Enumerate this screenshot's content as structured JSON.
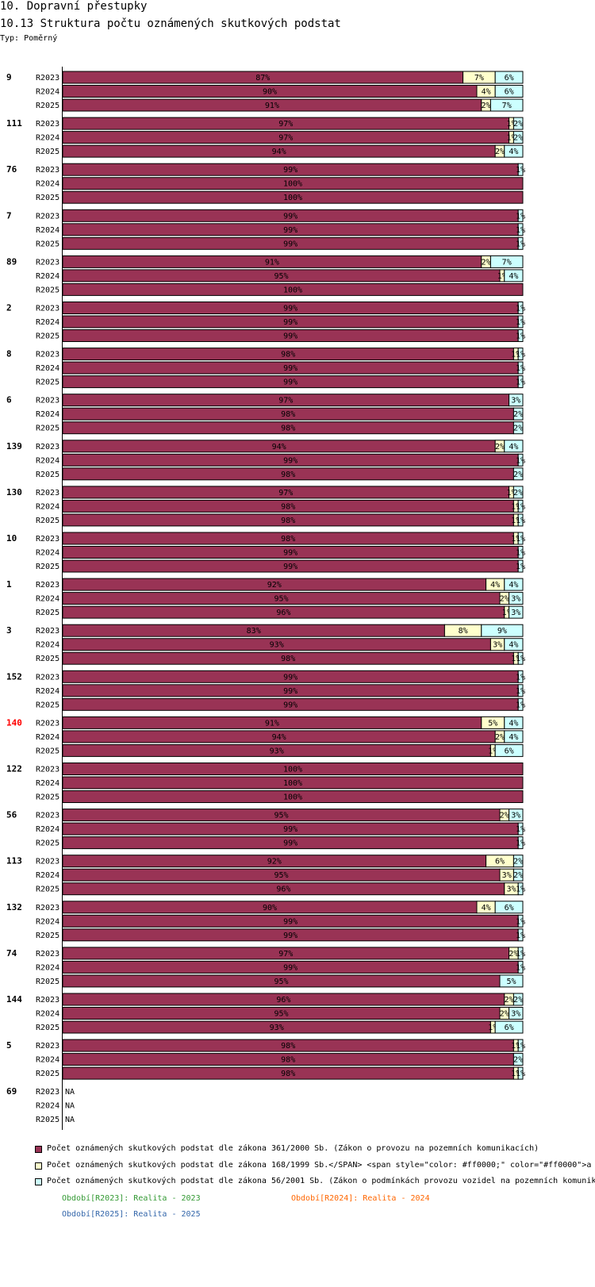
{
  "header": {
    "title": "10. Dopravní přestupky",
    "subtitle": "10.13 Struktura počtu oznámených skutkových podstat",
    "type_label": "Typ: Poměrný"
  },
  "colors": {
    "series1": "#993355",
    "series2": "#ffffcc",
    "series3": "#ccffff",
    "highlight_label": "#ff0000",
    "period_2023": "#339933",
    "period_2024": "#ff6600",
    "period_2025": "#3366aa"
  },
  "legend": [
    {
      "label": "Počet oznámených skutkových podstat dle zákona 361/2000 Sb. (Zákon o provozu na pozemních komunikacích)",
      "color": "#993355"
    },
    {
      "label": "Počet oznámených skutkových podstat dle zákona 168/1999 Sb.</SPAN> <span style=\"color: #ff0000;\" color=\"#ff0000\">a",
      "color": "#ffffcc"
    },
    {
      "label": "Počet oznámených skutkových podstat dle zákona 56/2001 Sb. (Zákon o podmínkách provozu vozidel na pozemních komunik",
      "color": "#ccffff"
    }
  ],
  "periods": [
    {
      "label": "Období[R2023]: Realita - 2023",
      "color": "#339933"
    },
    {
      "label": "Období[R2024]: Realita - 2024",
      "color": "#ff6600"
    },
    {
      "label": "Období[R2025]: Realita - 2025",
      "color": "#3366aa"
    }
  ],
  "chart_data": {
    "type": "bar",
    "orientation": "horizontal",
    "stacked": "percent",
    "series_names": [
      "361/2000 Sb.",
      "168/1999 Sb.",
      "56/2001 Sb."
    ],
    "xlim": [
      0,
      100
    ],
    "groups": [
      {
        "label": "9",
        "highlight": false,
        "rows": [
          {
            "period": "R2023",
            "values": [
              87,
              7,
              6
            ]
          },
          {
            "period": "R2024",
            "values": [
              90,
              4,
              6
            ]
          },
          {
            "period": "R2025",
            "values": [
              91,
              2,
              7
            ]
          }
        ]
      },
      {
        "label": "111",
        "highlight": false,
        "rows": [
          {
            "period": "R2023",
            "values": [
              97,
              1,
              2
            ]
          },
          {
            "period": "R2024",
            "values": [
              97,
              1,
              2
            ]
          },
          {
            "period": "R2025",
            "values": [
              94,
              2,
              4
            ]
          }
        ]
      },
      {
        "label": "76",
        "highlight": false,
        "rows": [
          {
            "period": "R2023",
            "values": [
              99,
              0,
              1
            ]
          },
          {
            "period": "R2024",
            "values": [
              100,
              0,
              0
            ]
          },
          {
            "period": "R2025",
            "values": [
              100,
              0,
              0
            ]
          }
        ]
      },
      {
        "label": "7",
        "highlight": false,
        "rows": [
          {
            "period": "R2023",
            "values": [
              99,
              0,
              1
            ]
          },
          {
            "period": "R2024",
            "values": [
              99,
              0,
              1
            ]
          },
          {
            "period": "R2025",
            "values": [
              99,
              0,
              1
            ]
          }
        ]
      },
      {
        "label": "89",
        "highlight": false,
        "rows": [
          {
            "period": "R2023",
            "values": [
              91,
              2,
              7
            ]
          },
          {
            "period": "R2024",
            "values": [
              95,
              1,
              4
            ]
          },
          {
            "period": "R2025",
            "values": [
              100,
              0,
              0
            ]
          }
        ]
      },
      {
        "label": "2",
        "highlight": false,
        "rows": [
          {
            "period": "R2023",
            "values": [
              99,
              0,
              1
            ]
          },
          {
            "period": "R2024",
            "values": [
              99,
              0,
              1
            ]
          },
          {
            "period": "R2025",
            "values": [
              99,
              0,
              1
            ]
          }
        ]
      },
      {
        "label": "8",
        "highlight": false,
        "rows": [
          {
            "period": "R2023",
            "values": [
              98,
              1,
              1
            ]
          },
          {
            "period": "R2024",
            "values": [
              99,
              0,
              1
            ]
          },
          {
            "period": "R2025",
            "values": [
              99,
              0,
              1
            ]
          }
        ]
      },
      {
        "label": "6",
        "highlight": false,
        "rows": [
          {
            "period": "R2023",
            "values": [
              97,
              0,
              3
            ]
          },
          {
            "period": "R2024",
            "values": [
              98,
              0,
              2
            ]
          },
          {
            "period": "R2025",
            "values": [
              98,
              0,
              2
            ]
          }
        ]
      },
      {
        "label": "139",
        "highlight": false,
        "rows": [
          {
            "period": "R2023",
            "values": [
              94,
              2,
              4
            ]
          },
          {
            "period": "R2024",
            "values": [
              99,
              0,
              1
            ]
          },
          {
            "period": "R2025",
            "values": [
              98,
              0,
              2
            ]
          }
        ]
      },
      {
        "label": "130",
        "highlight": false,
        "rows": [
          {
            "period": "R2023",
            "values": [
              97,
              1,
              2
            ]
          },
          {
            "period": "R2024",
            "values": [
              98,
              1,
              1
            ]
          },
          {
            "period": "R2025",
            "values": [
              98,
              1,
              1
            ]
          }
        ]
      },
      {
        "label": "10",
        "highlight": false,
        "rows": [
          {
            "period": "R2023",
            "values": [
              98,
              1,
              1
            ]
          },
          {
            "period": "R2024",
            "values": [
              99,
              0,
              1
            ]
          },
          {
            "period": "R2025",
            "values": [
              99,
              0,
              1
            ]
          }
        ]
      },
      {
        "label": "1",
        "highlight": false,
        "rows": [
          {
            "period": "R2023",
            "values": [
              92,
              4,
              4
            ]
          },
          {
            "period": "R2024",
            "values": [
              95,
              2,
              3
            ]
          },
          {
            "period": "R2025",
            "values": [
              96,
              1,
              3
            ]
          }
        ]
      },
      {
        "label": "3",
        "highlight": false,
        "rows": [
          {
            "period": "R2023",
            "values": [
              83,
              8,
              9
            ]
          },
          {
            "period": "R2024",
            "values": [
              93,
              3,
              4
            ]
          },
          {
            "period": "R2025",
            "values": [
              98,
              1,
              1
            ]
          }
        ]
      },
      {
        "label": "152",
        "highlight": false,
        "rows": [
          {
            "period": "R2023",
            "values": [
              99,
              0,
              1
            ]
          },
          {
            "period": "R2024",
            "values": [
              99,
              0,
              1
            ]
          },
          {
            "period": "R2025",
            "values": [
              99,
              0,
              1
            ]
          }
        ]
      },
      {
        "label": "140",
        "highlight": true,
        "rows": [
          {
            "period": "R2023",
            "values": [
              91,
              5,
              4
            ]
          },
          {
            "period": "R2024",
            "values": [
              94,
              2,
              4
            ]
          },
          {
            "period": "R2025",
            "values": [
              93,
              1,
              6
            ]
          }
        ]
      },
      {
        "label": "122",
        "highlight": false,
        "rows": [
          {
            "period": "R2023",
            "values": [
              100,
              0,
              0
            ]
          },
          {
            "period": "R2024",
            "values": [
              100,
              0,
              0
            ]
          },
          {
            "period": "R2025",
            "values": [
              100,
              0,
              0
            ]
          }
        ]
      },
      {
        "label": "56",
        "highlight": false,
        "rows": [
          {
            "period": "R2023",
            "values": [
              95,
              2,
              3
            ]
          },
          {
            "period": "R2024",
            "values": [
              99,
              0,
              1
            ]
          },
          {
            "period": "R2025",
            "values": [
              99,
              0,
              1
            ]
          }
        ]
      },
      {
        "label": "113",
        "highlight": false,
        "rows": [
          {
            "period": "R2023",
            "values": [
              92,
              6,
              2
            ]
          },
          {
            "period": "R2024",
            "values": [
              95,
              3,
              2
            ]
          },
          {
            "period": "R2025",
            "values": [
              96,
              3,
              1
            ]
          }
        ]
      },
      {
        "label": "132",
        "highlight": false,
        "rows": [
          {
            "period": "R2023",
            "values": [
              90,
              4,
              6
            ]
          },
          {
            "period": "R2024",
            "values": [
              99,
              0,
              1
            ]
          },
          {
            "period": "R2025",
            "values": [
              99,
              0,
              1
            ]
          }
        ]
      },
      {
        "label": "74",
        "highlight": false,
        "rows": [
          {
            "period": "R2023",
            "values": [
              97,
              2,
              1
            ]
          },
          {
            "period": "R2024",
            "values": [
              99,
              0,
              1
            ]
          },
          {
            "period": "R2025",
            "values": [
              95,
              0,
              5
            ]
          }
        ]
      },
      {
        "label": "144",
        "highlight": false,
        "rows": [
          {
            "period": "R2023",
            "values": [
              96,
              2,
              2
            ]
          },
          {
            "period": "R2024",
            "values": [
              95,
              2,
              3
            ]
          },
          {
            "period": "R2025",
            "values": [
              93,
              1,
              6
            ]
          }
        ]
      },
      {
        "label": "5",
        "highlight": false,
        "rows": [
          {
            "period": "R2023",
            "values": [
              98,
              1,
              1
            ]
          },
          {
            "period": "R2024",
            "values": [
              98,
              0,
              2
            ]
          },
          {
            "period": "R2025",
            "values": [
              98,
              1,
              1
            ]
          }
        ]
      },
      {
        "label": "69",
        "highlight": false,
        "rows": [
          {
            "period": "R2023",
            "values": null,
            "na_label": "NA"
          },
          {
            "period": "R2024",
            "values": null,
            "na_label": "NA"
          },
          {
            "period": "R2025",
            "values": null,
            "na_label": "NA"
          }
        ]
      }
    ]
  }
}
